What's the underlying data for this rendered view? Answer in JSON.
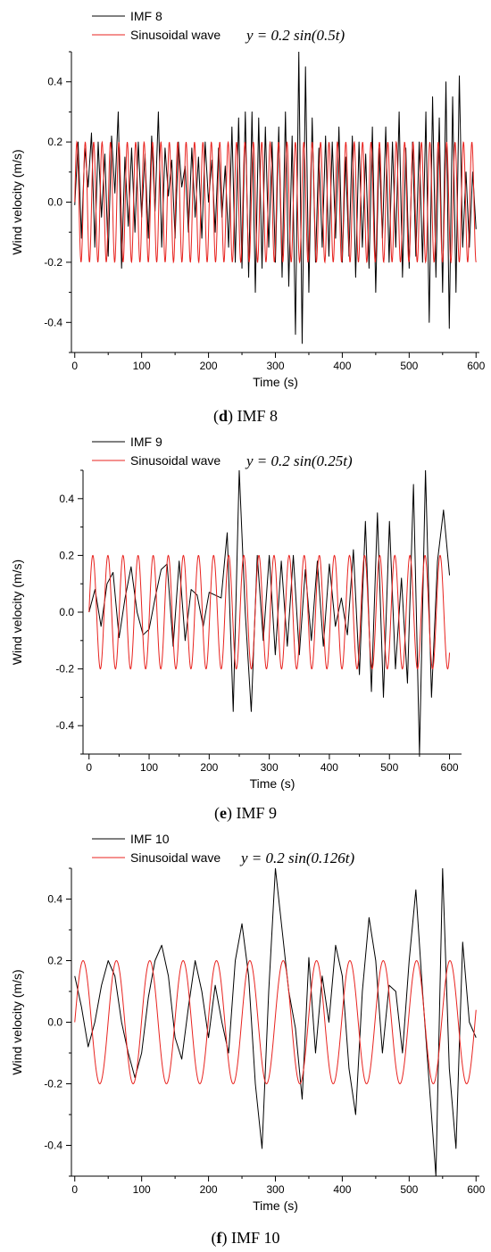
{
  "chart_data": [
    {
      "type": "line",
      "panel": "d",
      "caption_letter": "d",
      "caption_text": " IMF 8",
      "xlabel": "Time (s)",
      "ylabel": "Wind velocity (m/s)",
      "xlim": [
        -5,
        605
      ],
      "ylim": [
        -0.5,
        0.5
      ],
      "xticks": [
        0,
        100,
        200,
        300,
        400,
        500,
        600
      ],
      "yticks": [
        -0.4,
        -0.2,
        0.0,
        0.2,
        0.4
      ],
      "ytick_labels": [
        "-0.4",
        "-0.2",
        "0.0",
        "0.2",
        "0.4"
      ],
      "legend_position": "top-left",
      "equation": "y = 0.2 sin(0.5t)",
      "series": [
        {
          "name": "IMF 8",
          "color": "#000000",
          "x": [
            0,
            5,
            10,
            15,
            20,
            25,
            30,
            35,
            40,
            45,
            50,
            55,
            60,
            65,
            70,
            75,
            80,
            85,
            90,
            95,
            100,
            105,
            110,
            115,
            120,
            125,
            130,
            135,
            140,
            145,
            150,
            155,
            160,
            165,
            170,
            175,
            180,
            185,
            190,
            195,
            200,
            205,
            210,
            215,
            220,
            225,
            230,
            235,
            240,
            245,
            250,
            255,
            260,
            265,
            270,
            275,
            280,
            285,
            290,
            295,
            300,
            305,
            310,
            315,
            320,
            325,
            330,
            335,
            340,
            345,
            350,
            355,
            360,
            365,
            370,
            375,
            380,
            385,
            390,
            395,
            400,
            405,
            410,
            415,
            420,
            425,
            430,
            435,
            440,
            445,
            450,
            455,
            460,
            465,
            470,
            475,
            480,
            485,
            490,
            495,
            500,
            505,
            510,
            515,
            520,
            525,
            530,
            535,
            540,
            545,
            550,
            555,
            560,
            565,
            570,
            575,
            580,
            585,
            590,
            595,
            600
          ],
          "y": [
            -0.01,
            0.2,
            -0.12,
            0.18,
            0.05,
            0.23,
            -0.15,
            0.2,
            -0.05,
            0.16,
            -0.18,
            0.22,
            0.03,
            0.3,
            -0.22,
            0.15,
            -0.08,
            0.18,
            -0.1,
            0.2,
            -0.05,
            0.16,
            -0.12,
            0.22,
            -0.03,
            0.3,
            -0.15,
            0.18,
            0.02,
            0.14,
            -0.12,
            0.2,
            0.05,
            0.12,
            -0.1,
            0.18,
            -0.05,
            0.15,
            -0.12,
            0.2,
            0.0,
            0.14,
            -0.1,
            0.18,
            -0.05,
            0.12,
            -0.15,
            0.25,
            -0.2,
            0.28,
            -0.22,
            0.3,
            -0.25,
            0.3,
            -0.3,
            0.28,
            -0.22,
            0.25,
            -0.15,
            0.2,
            -0.2,
            0.25,
            -0.25,
            0.3,
            -0.28,
            0.22,
            -0.44,
            0.5,
            -0.47,
            0.45,
            -0.3,
            0.28,
            -0.2,
            0.18,
            -0.15,
            0.22,
            -0.18,
            0.2,
            -0.12,
            0.25,
            -0.2,
            0.15,
            -0.18,
            0.22,
            -0.25,
            0.2,
            -0.15,
            0.16,
            -0.22,
            0.25,
            -0.3,
            0.18,
            -0.12,
            0.25,
            -0.2,
            0.2,
            -0.15,
            0.3,
            -0.25,
            0.18,
            -0.22,
            0.2,
            -0.18,
            0.2,
            -0.2,
            0.3,
            -0.4,
            0.35,
            -0.25,
            0.28,
            -0.3,
            0.4,
            -0.42,
            0.35,
            -0.3,
            0.42,
            -0.15,
            0.1,
            -0.15,
            0.1,
            -0.09
          ]
        },
        {
          "name": "Sinusoidal wave",
          "color": "#e8231f",
          "function": "0.2*sin(0.5*t)",
          "amplitude": 0.2,
          "omega": 0.5,
          "x_range": [
            0,
            600
          ]
        }
      ]
    },
    {
      "type": "line",
      "panel": "e",
      "caption_letter": "e",
      "caption_text": " IMF 9",
      "xlabel": "Time (s)",
      "ylabel": "Wind velocity (m/s)",
      "xlim": [
        -10,
        620
      ],
      "ylim": [
        -0.5,
        0.5
      ],
      "xticks": [
        0,
        100,
        200,
        300,
        400,
        500,
        600
      ],
      "yticks": [
        -0.4,
        -0.2,
        0.0,
        0.2,
        0.4
      ],
      "ytick_labels": [
        "-0.4",
        "-0.2",
        "0.0",
        "0.2",
        "0.4"
      ],
      "legend_position": "top-left",
      "equation": "y = 0.2 sin(0.25t)",
      "series": [
        {
          "name": "IMF 9",
          "color": "#000000",
          "x": [
            0,
            10,
            20,
            30,
            40,
            50,
            60,
            70,
            80,
            90,
            100,
            110,
            120,
            130,
            140,
            150,
            160,
            170,
            180,
            190,
            200,
            210,
            220,
            230,
            240,
            250,
            260,
            270,
            280,
            290,
            300,
            310,
            320,
            330,
            340,
            350,
            360,
            370,
            380,
            390,
            400,
            410,
            420,
            430,
            440,
            450,
            460,
            470,
            480,
            490,
            500,
            510,
            520,
            530,
            540,
            550,
            560,
            570,
            580,
            590,
            600
          ],
          "y": [
            0.0,
            0.08,
            -0.05,
            0.1,
            0.14,
            -0.09,
            0.05,
            0.16,
            0.0,
            -0.08,
            -0.06,
            0.05,
            0.15,
            0.17,
            -0.12,
            0.18,
            -0.1,
            0.08,
            0.06,
            -0.05,
            0.07,
            0.06,
            0.05,
            0.28,
            -0.35,
            0.5,
            0.0,
            -0.35,
            0.2,
            -0.1,
            0.2,
            -0.15,
            0.18,
            -0.12,
            0.2,
            -0.15,
            0.15,
            -0.1,
            0.18,
            -0.12,
            0.17,
            -0.05,
            0.05,
            -0.08,
            0.22,
            -0.22,
            0.32,
            -0.28,
            0.35,
            -0.3,
            0.32,
            -0.2,
            0.12,
            -0.25,
            0.45,
            -0.5,
            0.5,
            -0.3,
            0.18,
            0.36,
            0.13
          ]
        },
        {
          "name": "Sinusoidal wave",
          "color": "#e8231f",
          "function": "0.2*sin(0.25*t)",
          "amplitude": 0.2,
          "omega": 0.25,
          "x_range": [
            0,
            600
          ]
        }
      ]
    },
    {
      "type": "line",
      "panel": "f",
      "caption_letter": "f",
      "caption_text": " IMF 10",
      "xlabel": "Time (s)",
      "ylabel": "Wind velocity (m/s)",
      "xlim": [
        -5,
        605
      ],
      "ylim": [
        -0.5,
        0.5
      ],
      "xticks": [
        0,
        100,
        200,
        300,
        400,
        500,
        600
      ],
      "yticks": [
        -0.4,
        -0.2,
        0.0,
        0.2,
        0.4
      ],
      "ytick_labels": [
        "-0.4",
        "-0.2",
        "0.0",
        "0.2",
        "0.4"
      ],
      "legend_position": "top-left",
      "equation": "y = 0.2 sin(0.126t)",
      "series": [
        {
          "name": "IMF 10",
          "color": "#000000",
          "x": [
            0,
            10,
            20,
            30,
            40,
            50,
            60,
            70,
            80,
            90,
            100,
            110,
            120,
            130,
            140,
            150,
            160,
            170,
            180,
            190,
            200,
            210,
            220,
            230,
            240,
            250,
            260,
            270,
            280,
            290,
            300,
            310,
            320,
            330,
            340,
            350,
            360,
            370,
            380,
            390,
            400,
            410,
            420,
            430,
            440,
            450,
            460,
            470,
            480,
            490,
            500,
            510,
            520,
            530,
            540,
            550,
            560,
            570,
            580,
            590,
            600
          ],
          "y": [
            0.15,
            0.05,
            -0.08,
            0.0,
            0.12,
            0.2,
            0.15,
            0.0,
            -0.1,
            -0.18,
            -0.1,
            0.08,
            0.2,
            0.25,
            0.15,
            -0.05,
            -0.12,
            0.05,
            0.2,
            0.1,
            -0.05,
            0.12,
            0.0,
            -0.1,
            0.2,
            0.32,
            0.15,
            -0.2,
            -0.41,
            0.1,
            0.5,
            0.3,
            0.1,
            -0.02,
            -0.25,
            0.21,
            -0.1,
            0.15,
            0.0,
            0.25,
            0.15,
            -0.15,
            -0.3,
            0.1,
            0.34,
            0.2,
            -0.1,
            0.12,
            0.1,
            -0.1,
            0.2,
            0.43,
            0.1,
            -0.2,
            -0.5,
            0.5,
            -0.15,
            -0.41,
            0.26,
            0.0,
            -0.05
          ]
        },
        {
          "name": "Sinusoidal wave",
          "color": "#e8231f",
          "function": "0.2*sin(0.126*t)",
          "amplitude": 0.2,
          "omega": 0.126,
          "x_range": [
            0,
            600
          ]
        }
      ]
    }
  ]
}
